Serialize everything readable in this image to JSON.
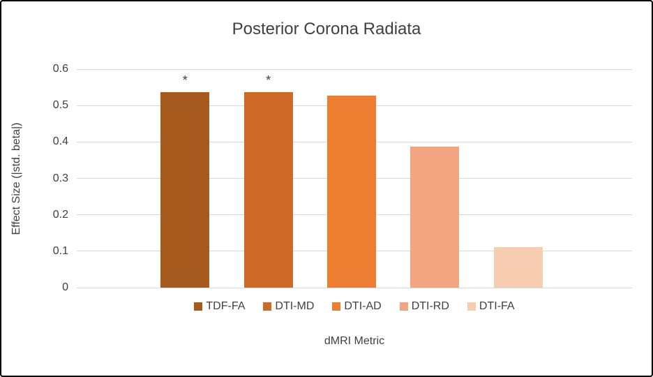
{
  "chart_data": {
    "type": "bar",
    "title": "Posterior Corona Radiata",
    "xlabel": "dMRI Metric",
    "ylabel": "Effect Size (|std. beta|)",
    "categories": [
      "TDF-FA",
      "DTI-MD",
      "DTI-AD",
      "DTI-RD",
      "DTI-FA"
    ],
    "values": [
      0.537,
      0.537,
      0.527,
      0.388,
      0.112
    ],
    "annotations": [
      "*",
      "*",
      "",
      "",
      ""
    ],
    "colors": [
      "#a65a1e",
      "#ce6a28",
      "#ed7d31",
      "#f2a580",
      "#f7cdb2"
    ],
    "ylim": [
      0,
      0.6
    ],
    "yticks": [
      0,
      0.1,
      0.2,
      0.3,
      0.4,
      0.5,
      0.6
    ],
    "ytick_labels": [
      "0",
      "0.1",
      "0.2",
      "0.3",
      "0.4",
      "0.5",
      "0.6"
    ],
    "grid": true,
    "legend_position": "bottom",
    "gridline_color": "#d9d9d9",
    "text_color": "#404040"
  }
}
